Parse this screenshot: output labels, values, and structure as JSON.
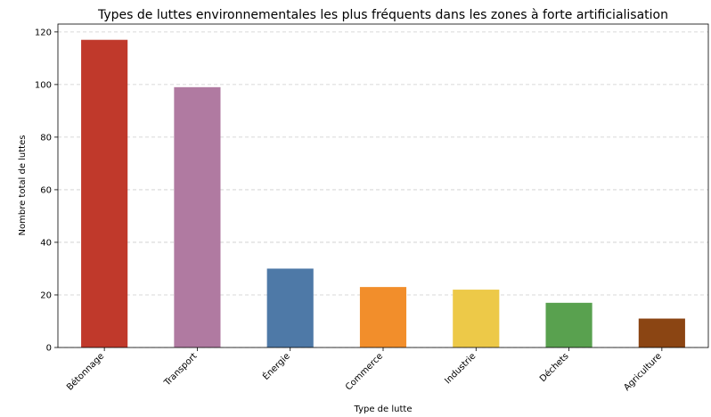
{
  "chart_data": {
    "type": "bar",
    "title": "Types de luttes environnementales les plus fréquents dans les zones à forte artificialisation",
    "x_label": "Type de lutte",
    "y_label": "Nombre total de luttes",
    "categories": [
      "Bétonnage",
      "Transport",
      "Énergie",
      "Commerce",
      "Industrie",
      "Déchets",
      "Agriculture"
    ],
    "values": [
      117,
      99,
      30,
      23,
      22,
      17,
      11
    ],
    "colors": [
      "#c0392b",
      "#b07aa1",
      "#4e79a7",
      "#f28e2b",
      "#edc948",
      "#59a14f",
      "#8b4513"
    ],
    "ylim": [
      0,
      123
    ],
    "yticks": [
      0,
      20,
      40,
      60,
      80,
      100,
      120
    ],
    "grid": true
  }
}
